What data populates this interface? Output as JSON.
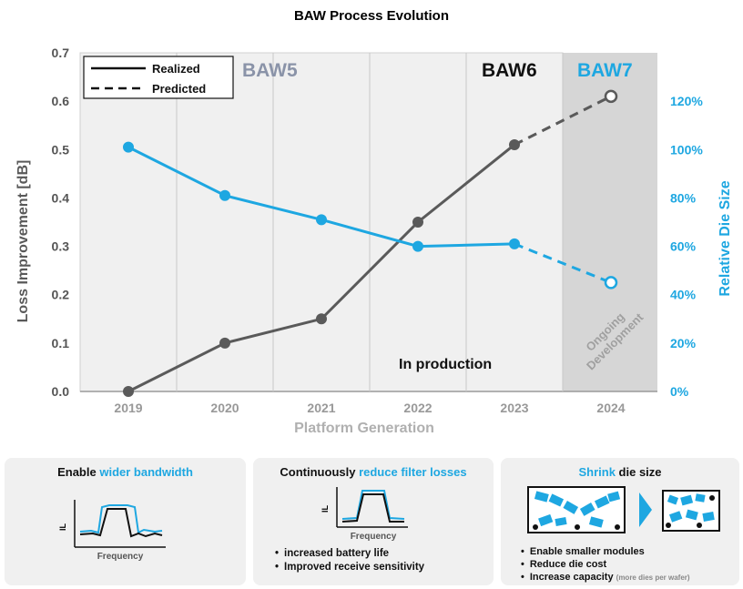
{
  "chart_data": {
    "type": "line",
    "title": "BAW Process Evolution",
    "xlabel": "Platform Generation",
    "ylabel": "Loss Improvement [dB]",
    "y2label": "Relative Die Size",
    "categories": [
      "2019",
      "2020",
      "2021",
      "2022",
      "2023",
      "2024"
    ],
    "ylim": [
      0,
      0.7
    ],
    "yticks": [
      "0.0",
      "0.1",
      "0.2",
      "0.3",
      "0.4",
      "0.5",
      "0.6",
      "0.7"
    ],
    "y2lim": [
      0,
      140
    ],
    "y2ticks": [
      "0%",
      "20%",
      "40%",
      "60%",
      "80%",
      "100%",
      "120%"
    ],
    "series": [
      {
        "axis": "left",
        "color": "#5a5a5a",
        "values": [
          0.0,
          0.1,
          0.15,
          0.35,
          0.51,
          0.61
        ],
        "realized_through": "2023"
      },
      {
        "axis": "right",
        "color": "#1ea7e1",
        "values": [
          101,
          81,
          71,
          60,
          61,
          45
        ],
        "realized_through": "2023"
      }
    ],
    "legend": {
      "position": "top-left",
      "items": [
        "Realized",
        "Predicted"
      ]
    },
    "regions": {
      "baw5": "BAW5",
      "baw6": "BAW6",
      "baw7": "BAW7"
    },
    "annotations": {
      "production": "In production",
      "ongoing_1": "Ongoing",
      "ongoing_2": "Development"
    },
    "grid": true
  },
  "panels": {
    "bandwidth": {
      "title_prefix": "Enable ",
      "title_accent": "wider bandwidth",
      "axis_il": "IL",
      "axis_freq": "Frequency"
    },
    "losses": {
      "title_prefix": "Continuously ",
      "title_accent": "reduce filter losses",
      "axis_il": "IL",
      "axis_freq": "Frequency",
      "bullets": [
        "increased battery life",
        "Improved receive sensitivity"
      ]
    },
    "shrink": {
      "title_accent": "Shrink",
      "title_suffix": " die size",
      "bullets": [
        "Enable smaller modules",
        "Reduce die cost",
        "Increase capacity"
      ],
      "note": "(more dies per wafer)"
    }
  },
  "colors": {
    "accent": "#1ea7e1",
    "dark": "#5a5a5a",
    "baw5": "#8a93a8"
  }
}
